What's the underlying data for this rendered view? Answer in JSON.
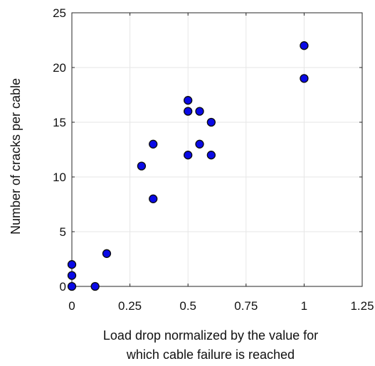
{
  "chart_data": {
    "type": "scatter",
    "title": "",
    "xlabel_lines": [
      "Load drop normalized by the value for",
      "which cable failure is reached"
    ],
    "ylabel": "Number of cracks per cable",
    "xlim": [
      0,
      1.25
    ],
    "ylim": [
      0,
      25
    ],
    "x_ticks": [
      0,
      0.25,
      0.5,
      0.75,
      1,
      1.25
    ],
    "x_tick_labels": [
      "0",
      "0.25",
      "0.5",
      "0.75",
      "1",
      "1.25"
    ],
    "y_ticks": [
      0,
      5,
      10,
      15,
      20,
      25
    ],
    "y_tick_labels": [
      "0",
      "5",
      "10",
      "15",
      "20",
      "25"
    ],
    "grid": true,
    "marker_color": "#0a0ae6",
    "series": [
      {
        "points": [
          {
            "x": 0,
            "y": 0
          },
          {
            "x": 0,
            "y": 1
          },
          {
            "x": 0,
            "y": 2
          },
          {
            "x": 0.1,
            "y": 0
          },
          {
            "x": 0.15,
            "y": 3
          },
          {
            "x": 0.3,
            "y": 11
          },
          {
            "x": 0.35,
            "y": 13
          },
          {
            "x": 0.35,
            "y": 8
          },
          {
            "x": 0.5,
            "y": 17
          },
          {
            "x": 0.5,
            "y": 16
          },
          {
            "x": 0.5,
            "y": 12
          },
          {
            "x": 0.55,
            "y": 16
          },
          {
            "x": 0.55,
            "y": 13
          },
          {
            "x": 0.6,
            "y": 15
          },
          {
            "x": 0.6,
            "y": 12
          },
          {
            "x": 1,
            "y": 22
          },
          {
            "x": 1,
            "y": 19
          }
        ]
      }
    ]
  }
}
